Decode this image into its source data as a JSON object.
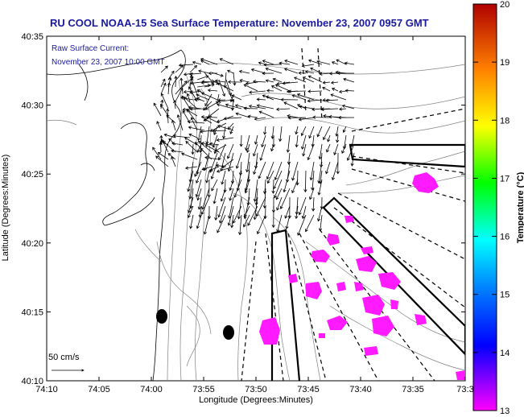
{
  "title": "RU COOL  NOAA-15  Sea Surface Temperature:  November 23, 2007 0957 GMT",
  "annotation": {
    "line1": "Raw Surface Current:",
    "line2": "November 23, 2007 10:00 GMT"
  },
  "scale_label": "50 cm/s",
  "x_axis": {
    "label": "Longitude (Degrees:Minutes)",
    "ticks": [
      "74:10",
      "74:05",
      "74:00",
      "73:55",
      "73:50",
      "73:45",
      "73:40",
      "73:35",
      "73:3"
    ]
  },
  "y_axis": {
    "label": "Latitude (Degrees:Minutes)",
    "ticks": [
      "40:35",
      "40:30",
      "40:25",
      "40:20",
      "40:15",
      "40:10"
    ]
  },
  "colorbar": {
    "label": "Temperature (°C)",
    "ticks": [
      "20",
      "19",
      "18",
      "17",
      "16",
      "15",
      "14",
      "13"
    ],
    "min": 13,
    "max": 20
  },
  "colors": {
    "title": "#1a1a9e",
    "sst_patch": "#ff1aff",
    "contour": "#808080"
  }
}
